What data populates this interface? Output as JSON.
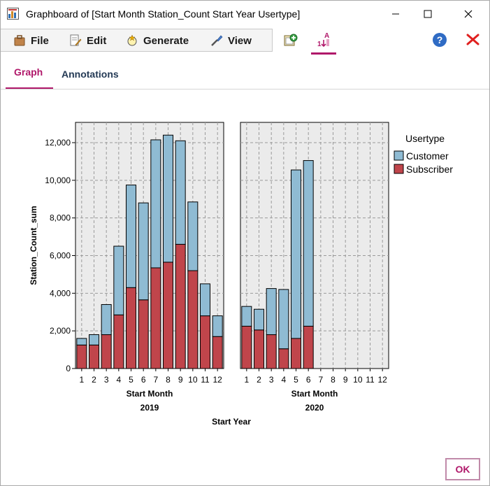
{
  "window": {
    "title": "Graphboard of [Start Month Station_Count Start Year Usertype]"
  },
  "menu": {
    "file": "File",
    "edit": "Edit",
    "generate": "Generate",
    "view": "View"
  },
  "tabs": {
    "graph": "Graph",
    "annotations": "Annotations"
  },
  "buttons": {
    "ok": "OK"
  },
  "icons": [
    "app-icon",
    "minimize-icon",
    "maximize-icon",
    "close-icon",
    "file-icon",
    "edit-icon",
    "generate-icon",
    "view-icon",
    "add-node-icon",
    "sort-icon",
    "help-icon",
    "close-red-icon"
  ],
  "colors": {
    "customer": "#8fbbd3",
    "subscriber": "#c0454b",
    "accent": "#b0186a",
    "panel_bg": "#ebebeb"
  },
  "chart_data": {
    "type": "bar",
    "stacked": true,
    "ylabel": "Station_Count_sum",
    "xlabel": "Start Month",
    "facet_label": "Start Year",
    "legend_title": "Usertype",
    "legend_position": "right",
    "ylim": [
      0,
      13000
    ],
    "yticks": [
      0,
      2000,
      4000,
      6000,
      8000,
      10000,
      12000
    ],
    "ytick_labels": [
      "0",
      "2,000",
      "4,000",
      "6,000",
      "8,000",
      "10,000",
      "12,000"
    ],
    "categories": [
      "1",
      "2",
      "3",
      "4",
      "5",
      "6",
      "7",
      "8",
      "9",
      "10",
      "11",
      "12"
    ],
    "grid": true,
    "panels": [
      {
        "year": "2019",
        "series": [
          {
            "name": "Customer",
            "values": [
              350,
              550,
              1600,
              3650,
              5450,
              5150,
              6800,
              6750,
              5500,
              3650,
              1700,
              1100
            ]
          },
          {
            "name": "Subscriber",
            "values": [
              1250,
              1250,
              1800,
              2850,
              4300,
              3650,
              5350,
              5650,
              6600,
              5200,
              2800,
              1700
            ]
          }
        ]
      },
      {
        "year": "2020",
        "series": [
          {
            "name": "Customer",
            "values": [
              1050,
              1100,
              2450,
              3150,
              8950,
              8800,
              null,
              null,
              null,
              null,
              null,
              null
            ]
          },
          {
            "name": "Subscriber",
            "values": [
              2250,
              2050,
              1800,
              1050,
              1600,
              2250,
              null,
              null,
              null,
              null,
              null,
              null
            ]
          }
        ]
      }
    ]
  }
}
